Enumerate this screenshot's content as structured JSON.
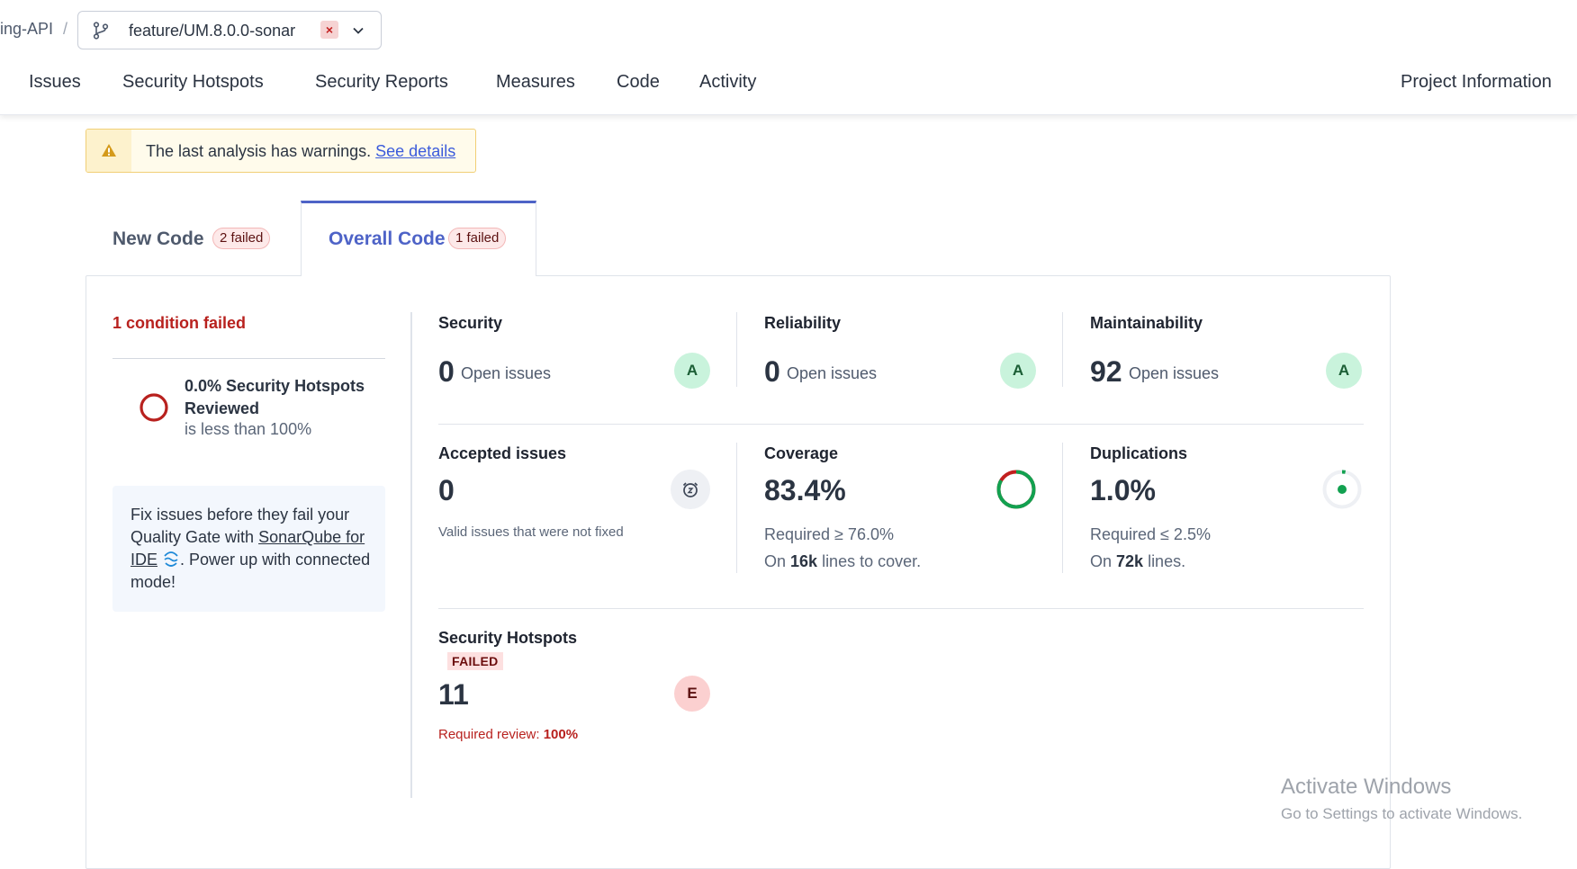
{
  "header": {
    "project": "ing-API",
    "separator": "/",
    "branch": {
      "name": "feature/UM.8.0.0-sonar",
      "badge": "×"
    },
    "nav": [
      "Issues",
      "Security Hotspots",
      "Security Reports",
      "Measures",
      "Code",
      "Activity"
    ],
    "project_information": "Project Information"
  },
  "warning": {
    "text": "The last analysis has warnings.",
    "link": "See details"
  },
  "tabs": [
    {
      "label": "New Code",
      "badge": "2 failed"
    },
    {
      "label": "Overall Code",
      "badge": "1 failed"
    }
  ],
  "conditions": {
    "summary": "1 condition failed",
    "item": {
      "title": "0.0% Security Hotspots Reviewed",
      "subtitle": "is less than 100%"
    }
  },
  "ide_promo": {
    "prefix": "Fix issues before they fail your Quality Gate with ",
    "link": "SonarQube for IDE",
    "suffix": ". Power up with connected mode!"
  },
  "metrics": {
    "security": {
      "title": "Security",
      "value": "0",
      "unit": "Open issues",
      "rating": "A"
    },
    "reliability": {
      "title": "Reliability",
      "value": "0",
      "unit": "Open issues",
      "rating": "A"
    },
    "maintainability": {
      "title": "Maintainability",
      "value": "92",
      "unit": "Open issues",
      "rating": "A"
    },
    "accepted": {
      "title": "Accepted issues",
      "value": "0",
      "desc": "Valid issues that were not fixed"
    },
    "coverage": {
      "title": "Coverage",
      "value": "83.4%",
      "required": "Required ≥ 76.0%",
      "lines_prefix": "On ",
      "lines_bold": "16k",
      "lines_suffix": " lines to cover.",
      "percent": 83.4
    },
    "duplications": {
      "title": "Duplications",
      "value": "1.0%",
      "required": "Required ≤ 2.5%",
      "lines_prefix": "On ",
      "lines_bold": "72k",
      "lines_suffix": " lines.",
      "percent": 1.0
    },
    "hotspots": {
      "title": "Security Hotspots",
      "status": "FAILED",
      "value": "11",
      "rating": "E",
      "review_label": "Required review: ",
      "review_value": "100%"
    }
  },
  "os_overlay": {
    "title": "Activate Windows",
    "subtitle": "Go to Settings to activate Windows."
  },
  "colors": {
    "accent": "#4e63c7",
    "error": "#b8211e",
    "success": "#12a150",
    "warning_bg": "#fffbeb"
  }
}
